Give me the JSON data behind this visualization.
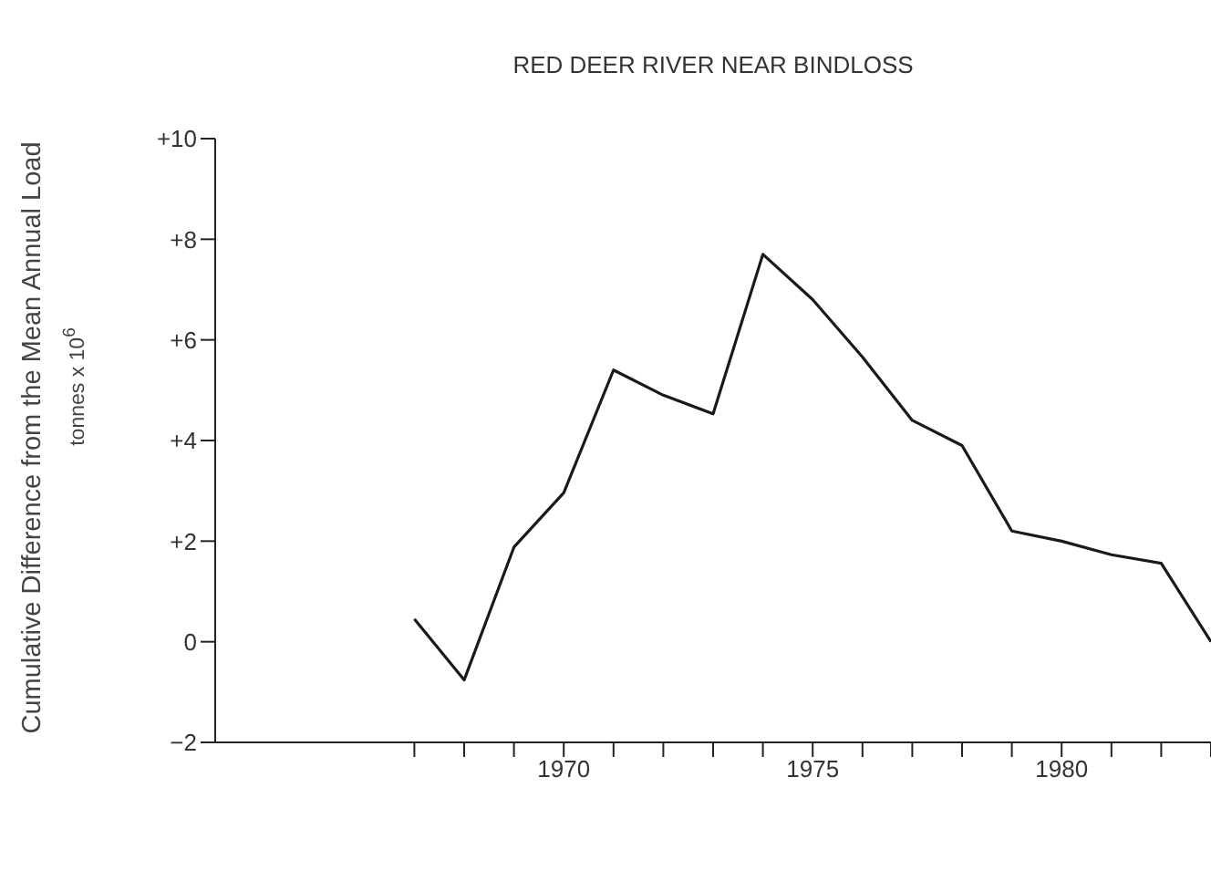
{
  "chart_data": {
    "type": "line",
    "title": "RED DEER RIVER NEAR BINDLOSS",
    "ylabel": "Cumulative Difference from the Mean Annual Load",
    "annotations": [
      "tonnes x 10$^{6}$"
    ],
    "x": [
      1967,
      1968,
      1969,
      1970,
      1971,
      1972,
      1973,
      1974,
      1975,
      1976,
      1977,
      1978,
      1979,
      1980,
      1981,
      1982,
      1983
    ],
    "series": [
      {
        "color": "#1a1a1a",
        "values": [
          0.45,
          -0.76,
          1.88,
          2.96,
          5.4,
          4.9,
          4.53,
          7.7,
          6.8,
          5.66,
          4.4,
          3.9,
          2.2,
          2.0,
          1.73,
          1.56,
          0
        ]
      }
    ],
    "xlim": [
      1963,
      1983
    ],
    "xticks": [
      {
        "value": 1967,
        "label": null
      },
      {
        "value": 1968,
        "label": null
      },
      {
        "value": 1969,
        "label": null
      },
      1970,
      {
        "value": 1971,
        "label": null
      },
      {
        "value": 1972,
        "label": null
      },
      {
        "value": 1973,
        "label": null
      },
      {
        "value": 1974,
        "label": null
      },
      1975,
      {
        "value": 1976,
        "label": null
      },
      {
        "value": 1977,
        "label": null
      },
      {
        "value": 1978,
        "label": null
      },
      {
        "value": 1979,
        "label": null
      },
      1980,
      {
        "value": 1981,
        "label": null
      },
      {
        "value": 1982,
        "label": null
      },
      {
        "value": 1983,
        "label": null
      }
    ],
    "ylim": [
      -2,
      10
    ],
    "yticks": [
      {
        "value": 10,
        "label": "+10"
      },
      {
        "value": 8,
        "label": "+8"
      },
      {
        "value": 6,
        "label": "+6"
      },
      {
        "value": 4,
        "label": "+4"
      },
      {
        "value": 2,
        "label": "+2"
      },
      0,
      {
        "value": -2,
        "label": "−2"
      }
    ],
    "marker": "none",
    "line_style": "solid",
    "legend": false
  }
}
